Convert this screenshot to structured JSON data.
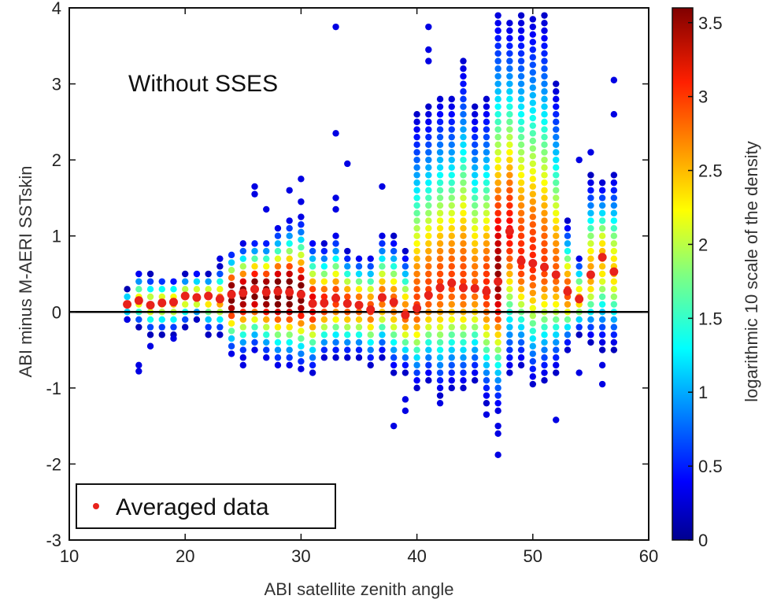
{
  "chart_data": {
    "type": "scatter",
    "title": "",
    "annotation": "Without SSES",
    "xlabel": "ABI satellite zenith angle",
    "ylabel": "ABI minus M-AERI SSTskin",
    "xlim": [
      10,
      60
    ],
    "ylim": [
      -3,
      4
    ],
    "x_ticks": [
      "10",
      "20",
      "30",
      "40",
      "50",
      "60"
    ],
    "y_ticks": [
      "4",
      "3",
      "2",
      "1",
      "0",
      "-1",
      "-2",
      "-3"
    ],
    "reference_line_y": 0,
    "legend": {
      "label": "Averaged data",
      "position": "bottom-left"
    },
    "colorbar": {
      "label": "logarithmic 10 scale of the density",
      "range": [
        0,
        3.6
      ],
      "ticks": [
        "3.5",
        "3",
        "2.5",
        "2",
        "1.5",
        "1",
        "0.5",
        "0"
      ],
      "colormap": "jet"
    },
    "series": [
      {
        "name": "Averaged data",
        "color": "#e8221b",
        "x": [
          15,
          16,
          17,
          18,
          19,
          20,
          21,
          22,
          23,
          24,
          25,
          26,
          27,
          28,
          29,
          30,
          31,
          32,
          33,
          34,
          35,
          36,
          37,
          38,
          39,
          40,
          41,
          42,
          43,
          44,
          45,
          46,
          47,
          48,
          49,
          50,
          51,
          52,
          53,
          54,
          55,
          56,
          57
        ],
        "y": [
          0.1,
          0.15,
          0.09,
          0.12,
          0.13,
          0.21,
          0.19,
          0.21,
          0.17,
          0.23,
          0.25,
          0.3,
          0.26,
          0.27,
          0.26,
          0.23,
          0.11,
          0.12,
          0.18,
          0.11,
          0.09,
          0.03,
          0.19,
          0.13,
          -0.04,
          0.05,
          0.22,
          0.32,
          0.38,
          0.32,
          0.31,
          0.27,
          0.4,
          1.06,
          0.67,
          0.64,
          0.59,
          0.49,
          0.27,
          0.17,
          0.49,
          0.72,
          0.53
        ]
      }
    ],
    "density_columns": [
      {
        "x": 15,
        "low": -0.1,
        "high": 0.3,
        "peak": 1.6,
        "out": [
          -0.1
        ]
      },
      {
        "x": 16,
        "low": -0.2,
        "high": 0.55,
        "peak": 1.8,
        "out": [
          -0.7,
          -0.78
        ]
      },
      {
        "x": 17,
        "low": -0.3,
        "high": 0.5,
        "peak": 1.9,
        "out": [
          -0.45
        ]
      },
      {
        "x": 18,
        "low": -0.3,
        "high": 0.48,
        "peak": 1.9,
        "out": []
      },
      {
        "x": 19,
        "low": -0.3,
        "high": 0.45,
        "peak": 2.0,
        "out": [
          -0.35
        ]
      },
      {
        "x": 20,
        "low": -0.2,
        "high": 0.5,
        "peak": 2.0,
        "out": []
      },
      {
        "x": 21,
        "low": -0.1,
        "high": 0.55,
        "peak": 2.1,
        "out": []
      },
      {
        "x": 22,
        "low": -0.3,
        "high": 0.5,
        "peak": 2.1,
        "out": []
      },
      {
        "x": 23,
        "low": -0.3,
        "high": 0.6,
        "peak": 2.2,
        "out": [
          0.7
        ]
      },
      {
        "x": 24,
        "low": -0.55,
        "high": 0.8,
        "peak": 3.4,
        "out": []
      },
      {
        "x": 25,
        "low": -0.6,
        "high": 0.9,
        "peak": 3.2,
        "out": [
          -0.7
        ]
      },
      {
        "x": 26,
        "low": -0.5,
        "high": 0.95,
        "peak": 3.3,
        "out": [
          1.55,
          1.65
        ]
      },
      {
        "x": 27,
        "low": -0.6,
        "high": 0.95,
        "peak": 3.3,
        "out": [
          1.35
        ]
      },
      {
        "x": 28,
        "low": -0.7,
        "high": 1.1,
        "peak": 3.4,
        "out": []
      },
      {
        "x": 29,
        "low": -0.7,
        "high": 1.2,
        "peak": 3.4,
        "out": [
          1.6
        ]
      },
      {
        "x": 30,
        "low": -0.75,
        "high": 1.25,
        "peak": 3.2,
        "out": [
          1.75,
          1.45
        ]
      },
      {
        "x": 31,
        "low": -0.8,
        "high": 0.95,
        "peak": 2.8,
        "out": []
      },
      {
        "x": 32,
        "low": -0.6,
        "high": 0.9,
        "peak": 2.6,
        "out": []
      },
      {
        "x": 33,
        "low": -0.6,
        "high": 1.05,
        "peak": 2.5,
        "out": [
          3.75,
          2.35,
          1.5,
          1.35
        ]
      },
      {
        "x": 34,
        "low": -0.6,
        "high": 0.8,
        "peak": 2.5,
        "out": [
          1.95
        ]
      },
      {
        "x": 35,
        "low": -0.6,
        "high": 0.75,
        "peak": 2.4,
        "out": []
      },
      {
        "x": 36,
        "low": -0.7,
        "high": 0.75,
        "peak": 2.4,
        "out": []
      },
      {
        "x": 37,
        "low": -0.6,
        "high": 1.05,
        "peak": 2.3,
        "out": [
          1.65
        ]
      },
      {
        "x": 38,
        "low": -0.8,
        "high": 1.0,
        "peak": 2.3,
        "out": [
          -1.5
        ]
      },
      {
        "x": 39,
        "low": -0.8,
        "high": 0.8,
        "peak": 2.3,
        "out": [
          -1.15,
          -1.3
        ]
      },
      {
        "x": 40,
        "low": -1.0,
        "high": 2.6,
        "peak": 2.4,
        "out": []
      },
      {
        "x": 41,
        "low": -0.9,
        "high": 2.7,
        "peak": 2.4,
        "out": [
          3.75,
          3.45,
          3.3
        ]
      },
      {
        "x": 42,
        "low": -1.1,
        "high": 2.85,
        "peak": 2.4,
        "out": [
          -1.2
        ]
      },
      {
        "x": 43,
        "low": -1.0,
        "high": 2.85,
        "peak": 2.4,
        "out": []
      },
      {
        "x": 44,
        "low": -1.0,
        "high": 3.35,
        "peak": 2.4,
        "out": []
      },
      {
        "x": 45,
        "low": -0.9,
        "high": 2.7,
        "peak": 2.3,
        "out": []
      },
      {
        "x": 46,
        "low": -1.2,
        "high": 2.8,
        "peak": 2.5,
        "out": [
          -1.35
        ]
      },
      {
        "x": 47,
        "low": -1.3,
        "high": 3.9,
        "peak": 3.0,
        "out": [
          -1.5,
          -1.6,
          -1.88
        ]
      },
      {
        "x": 48,
        "low": -0.8,
        "high": 3.85,
        "peak": 2.6,
        "out": []
      },
      {
        "x": 49,
        "low": -0.7,
        "high": 3.9,
        "peak": 2.5,
        "out": []
      },
      {
        "x": 50,
        "low": -0.95,
        "high": 3.9,
        "peak": 2.5,
        "out": []
      },
      {
        "x": 51,
        "low": -0.9,
        "high": 3.9,
        "peak": 2.4,
        "out": []
      },
      {
        "x": 52,
        "low": -0.8,
        "high": 3.0,
        "peak": 2.3,
        "out": [
          -1.42
        ]
      },
      {
        "x": 53,
        "low": -0.5,
        "high": 1.2,
        "peak": 2.4,
        "out": []
      },
      {
        "x": 54,
        "low": -0.3,
        "high": 0.75,
        "peak": 2.0,
        "out": [
          -0.8,
          2.0
        ]
      },
      {
        "x": 55,
        "low": -0.4,
        "high": 1.8,
        "peak": 2.1,
        "out": [
          2.1
        ]
      },
      {
        "x": 56,
        "low": -0.5,
        "high": 1.75,
        "peak": 2.0,
        "out": [
          -0.7,
          -0.95
        ]
      },
      {
        "x": 57,
        "low": -0.5,
        "high": 1.85,
        "peak": 1.9,
        "out": [
          3.05,
          2.6
        ]
      }
    ]
  }
}
